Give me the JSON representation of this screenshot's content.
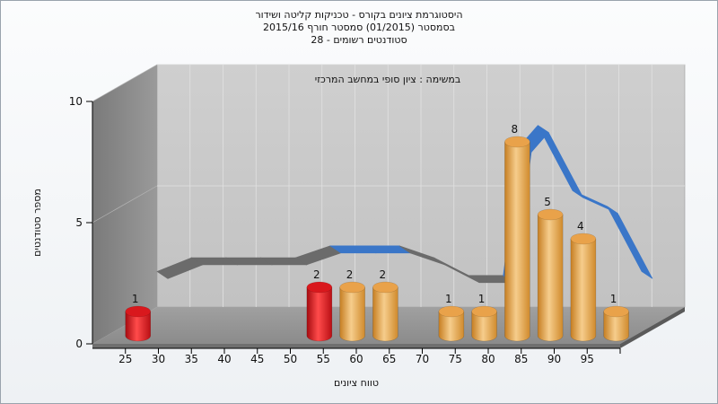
{
  "title": {
    "line1": "היסטוגרמת ציונים בקורס - טכניקות קליטה ושידור",
    "line2": "בסמסטר  (01/2015)  סמסטר חורף  2015/16",
    "line3": "סטודנטים רשומים - 28"
  },
  "chart_data": {
    "type": "bar",
    "subtitle": "במשימה : ציון סופי במחשב המרכזי",
    "xlabel": "טווח ציונים",
    "ylabel": "מספר סטודנטים",
    "x_ticks": [
      "25",
      "30",
      "35",
      "40",
      "45",
      "50",
      "55",
      "60",
      "65",
      "70",
      "75",
      "80",
      "85",
      "90",
      "95"
    ],
    "y_ticks": [
      "0",
      "5",
      "10"
    ],
    "ylim": [
      0,
      10
    ],
    "xlim": [
      20,
      100
    ],
    "grid": true,
    "bars": [
      {
        "x": 25,
        "value": 1,
        "label": "1",
        "color": "#e8141b"
      },
      {
        "x": 52.5,
        "value": 2,
        "label": "2",
        "color": "#e8141b"
      },
      {
        "x": 57.5,
        "value": 2,
        "label": "2",
        "color": "#f0b055"
      },
      {
        "x": 62.5,
        "value": 2,
        "label": "2",
        "color": "#f0b055"
      },
      {
        "x": 72.5,
        "value": 1,
        "label": "1",
        "color": "#f0b055"
      },
      {
        "x": 77.5,
        "value": 1,
        "label": "1",
        "color": "#f0b055"
      },
      {
        "x": 82.5,
        "value": 8,
        "label": "8",
        "color": "#f0b055"
      },
      {
        "x": 87.5,
        "value": 5,
        "label": "5",
        "color": "#f0b055"
      },
      {
        "x": 92.5,
        "value": 4,
        "label": "4",
        "color": "#f0b055"
      },
      {
        "x": 97.5,
        "value": 1,
        "label": "1",
        "color": "#f0b055"
      }
    ],
    "curve": {
      "x": [
        30,
        35,
        40,
        45,
        50,
        55,
        60,
        65,
        70,
        75,
        80,
        82.5,
        85,
        90,
        95,
        100
      ],
      "y": [
        1.8,
        2.5,
        2.5,
        2.5,
        2.5,
        3.1,
        3.1,
        3.1,
        2.5,
        1.6,
        1.6,
        8.2,
        9.2,
        5.9,
        5.1,
        1.8
      ],
      "colors": [
        "#6b6b6b",
        "#3a76c8"
      ]
    }
  }
}
